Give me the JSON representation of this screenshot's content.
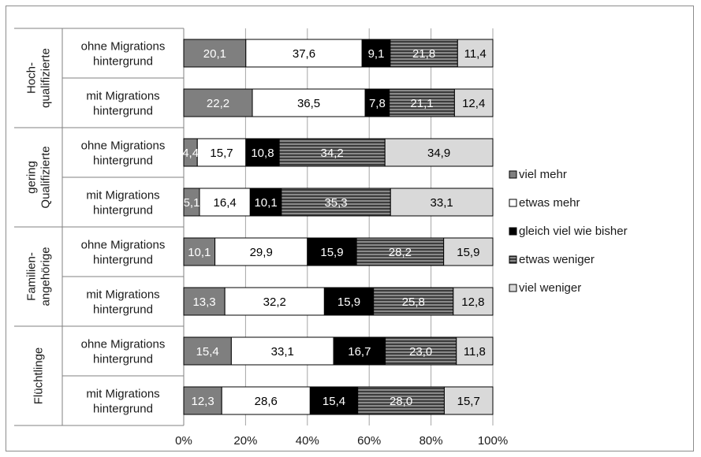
{
  "chart_data": {
    "type": "bar",
    "orientation": "horizontal",
    "stacked": true,
    "percent": true,
    "groups": [
      {
        "label": "Hoch-\nqualifizierte",
        "rows": [
          0,
          1
        ]
      },
      {
        "label": "gering\nQualifizierte",
        "rows": [
          2,
          3
        ]
      },
      {
        "label": "Familien-\nangehörige",
        "rows": [
          4,
          5
        ]
      },
      {
        "label": "Flüchtlinge",
        "rows": [
          6,
          7
        ]
      }
    ],
    "categories": [
      "ohne Migrations\nhintergrund",
      "mit Migrations\nhintergrund",
      "ohne Migrations\nhintergrund",
      "mit Migrations\nhintergrund",
      "ohne Migrations\nhintergrund",
      "mit Migrations\nhintergrund",
      "ohne Migrations\nhintergrund",
      "mit Migrations\nhintergrund"
    ],
    "series": [
      {
        "name": "viel mehr",
        "color": "#7f7f7f",
        "label_color": "#ffffff",
        "values": [
          20.1,
          22.2,
          4.4,
          5.1,
          10.1,
          13.3,
          15.4,
          12.3
        ],
        "labels": [
          "20,1",
          "22,2",
          "4,4",
          "5,1",
          "10,1",
          "13,3",
          "15,4",
          "12,3"
        ]
      },
      {
        "name": "etwas mehr",
        "color": "#ffffff",
        "label_color": "#000000",
        "values": [
          37.6,
          36.5,
          15.7,
          16.4,
          29.9,
          32.2,
          33.1,
          28.6
        ],
        "labels": [
          "37,6",
          "36,5",
          "15,7",
          "16,4",
          "29,9",
          "32,2",
          "33,1",
          "28,6"
        ]
      },
      {
        "name": "gleich viel wie bisher",
        "color": "#000000",
        "label_color": "#ffffff",
        "values": [
          9.1,
          7.8,
          10.8,
          10.1,
          15.9,
          15.9,
          16.7,
          15.4
        ],
        "labels": [
          "9,1",
          "7,8",
          "10,8",
          "10,1",
          "15,9",
          "15,9",
          "16,7",
          "15,4"
        ]
      },
      {
        "name": "etwas weniger",
        "color": "#5a5a5a",
        "pattern": "horizontal-stripes",
        "label_color": "#ffffff",
        "values": [
          21.8,
          21.1,
          34.2,
          35.3,
          28.2,
          25.8,
          23.0,
          28.0
        ],
        "labels": [
          "21,8",
          "21,1",
          "34,2",
          "35,3",
          "28,2",
          "25,8",
          "23,0",
          "28,0"
        ]
      },
      {
        "name": "viel weniger",
        "color": "#d9d9d9",
        "label_color": "#000000",
        "values": [
          11.4,
          12.4,
          34.9,
          33.1,
          15.9,
          12.8,
          11.8,
          15.7
        ],
        "labels": [
          "11,4",
          "12,4",
          "34,9",
          "33,1",
          "15,9",
          "12,8",
          "11,8",
          "15,7"
        ]
      }
    ],
    "xlim": [
      0,
      100
    ],
    "xticks": [
      "0%",
      "20%",
      "40%",
      "60%",
      "80%",
      "100%"
    ],
    "grid": true,
    "legend_position": "right"
  }
}
